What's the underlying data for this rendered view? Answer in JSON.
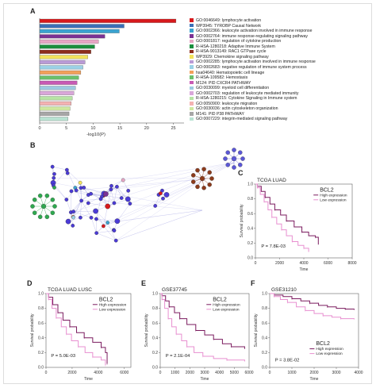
{
  "panels": {
    "a": "A",
    "b": "B",
    "c": "C",
    "d": "D",
    "e": "E",
    "f": "F"
  },
  "enrichment": {
    "xlabel": "-log10(P)",
    "xticks": [
      "0",
      "5",
      "10",
      "15",
      "20",
      "25"
    ],
    "terms": [
      {
        "label": "GO:0046649: lymphocyte activation",
        "value": 25.5,
        "color": "#d7191c"
      },
      {
        "label": "WP3945: TYROBP Causal Network",
        "value": 15.8,
        "color": "#3b6fb6"
      },
      {
        "label": "GO:0002366: leukocyte activation involved in immune response",
        "value": 14.9,
        "color": "#3ba3d0"
      },
      {
        "label": "GO:0002764: immune response-regulating signaling pathway",
        "value": 12.2,
        "color": "#7b3294"
      },
      {
        "label": "GO:0001817: regulation of cytokine production",
        "value": 11.0,
        "color": "#e7a6c5"
      },
      {
        "label": "R-HSA-1280218: Adaptive Immune System",
        "value": 10.3,
        "color": "#1b8f3e"
      },
      {
        "label": "R-HSA-9013149: RAC1 GTPase cycle",
        "value": 9.6,
        "color": "#8c2d1c"
      },
      {
        "label": "WP3929: Chemokine signaling pathway",
        "value": 9.0,
        "color": "#f2e35b"
      },
      {
        "label": "GO:0002285: lymphocyte activation involved in immune response",
        "value": 8.5,
        "color": "#ba9bd6"
      },
      {
        "label": "GO:0002683: negative regulation of immune system process",
        "value": 8.1,
        "color": "#9bd1e6"
      },
      {
        "label": "hsa04640: Hematopoietic cell lineage",
        "value": 7.7,
        "color": "#f2a05a"
      },
      {
        "label": "R-HSA-109582: Hemostasis",
        "value": 7.3,
        "color": "#6bc06b"
      },
      {
        "label": "M124: PID CXCR4 PATHWAY",
        "value": 7.0,
        "color": "#c85ab4"
      },
      {
        "label": "GO:0030099: myeloid cell differentiation",
        "value": 6.7,
        "color": "#9ecae1"
      },
      {
        "label": "GO:0002703: regulation of leukocyte mediated immunity",
        "value": 6.4,
        "color": "#d9a7d9"
      },
      {
        "label": "R-HSA-1280215: Cytokine Signaling in Immune system",
        "value": 6.1,
        "color": "#b7e4a5"
      },
      {
        "label": "GO:0050900: leukocyte migration",
        "value": 5.9,
        "color": "#f4b2b2"
      },
      {
        "label": "GO:0030036: actin cytoskeleton organization",
        "value": 5.7,
        "color": "#cfe8a0"
      },
      {
        "label": "M141: PID P38 PATHWAY",
        "value": 5.5,
        "color": "#a6a6a6"
      },
      {
        "label": "GO:0007229: integrin-mediated signaling pathway",
        "value": 5.3,
        "color": "#b9e3d3"
      }
    ]
  },
  "chart_data": [
    {
      "type": "bar",
      "orientation": "horizontal",
      "xlabel": "-log10(P)",
      "xlim": [
        0,
        27
      ],
      "categories": [
        "GO:0046649: lymphocyte activation",
        "WP3945: TYROBP Causal Network",
        "GO:0002366: leukocyte activation involved in immune response",
        "GO:0002764: immune response-regulating signaling pathway",
        "GO:0001817: regulation of cytokine production",
        "R-HSA-1280218: Adaptive Immune System",
        "R-HSA-9013149: RAC1 GTPase cycle",
        "WP3929: Chemokine signaling pathway",
        "GO:0002285: lymphocyte activation involved in immune response",
        "GO:0002683: negative regulation of immune system process",
        "hsa04640: Hematopoietic cell lineage",
        "R-HSA-109582: Hemostasis",
        "M124: PID CXCR4 PATHWAY",
        "GO:0030099: myeloid cell differentiation",
        "GO:0002703: regulation of leukocyte mediated immunity",
        "R-HSA-1280215: Cytokine Signaling in Immune system",
        "GO:0050900: leukocyte migration",
        "GO:0030036: actin cytoskeleton organization",
        "M141: PID P38 PATHWAY",
        "GO:0007229: integrin-mediated signaling pathway"
      ],
      "values": [
        25.5,
        15.8,
        14.9,
        12.2,
        11.0,
        10.3,
        9.6,
        9.0,
        8.5,
        8.1,
        7.7,
        7.3,
        7.0,
        6.7,
        6.4,
        6.1,
        5.9,
        5.7,
        5.5,
        5.3
      ]
    }
  ],
  "km": {
    "c": {
      "title": "TCGA LUAD",
      "gene": "BCL2",
      "pval": "P = 7.8E-03",
      "xlabel": "Time",
      "ylabel": "Survival probability",
      "xticks": [
        "0",
        "2000",
        "4000",
        "6000",
        "8000"
      ],
      "yticks": [
        "0.0",
        "0.2",
        "0.4",
        "0.6",
        "0.8",
        "1.0"
      ],
      "high_label": "High expression",
      "low_label": "Low expression",
      "xmax": 8000
    },
    "d": {
      "title": "TCGA LUAD LUSC",
      "gene": "BCL2",
      "pval": "P = 5.0E-03",
      "xlabel": "Time",
      "ylabel": "Survival probability",
      "xticks": [
        "0",
        "2000",
        "4000",
        "6000"
      ],
      "yticks": [
        "0.0",
        "0.2",
        "0.4",
        "0.6",
        "0.8",
        "1.0"
      ],
      "high_label": "High expression",
      "low_label": "Low expression",
      "xmax": 6500
    },
    "e": {
      "title": "GSE37745",
      "gene": "BCL2",
      "pval": "P = 2.1E-04",
      "xlabel": "Time",
      "ylabel": "Survival probability",
      "xticks": [
        "0",
        "1000",
        "2000",
        "3000",
        "4000",
        "5000",
        "6000"
      ],
      "yticks": [
        "0.0",
        "0.2",
        "0.4",
        "0.6",
        "0.8",
        "1.0"
      ],
      "high_label": "High expression",
      "low_label": "Low expression",
      "xmax": 6000
    },
    "f": {
      "title": "GSE31210",
      "gene": "BCL2",
      "pval": "P = 3.8E-02",
      "xlabel": "Time",
      "ylabel": "Survival probability",
      "xticks": [
        "0",
        "1000",
        "2000",
        "3000",
        "4000"
      ],
      "yticks": [
        "0.0",
        "0.2",
        "0.4",
        "0.6",
        "0.8",
        "1.0"
      ],
      "high_label": "High expression",
      "low_label": "Low expression",
      "xmax": 4000
    }
  },
  "colors": {
    "high": "#7a1a5e",
    "low": "#e88fd0",
    "network_edge": "#8f8fdc",
    "network_node": "#4b3bd6"
  }
}
